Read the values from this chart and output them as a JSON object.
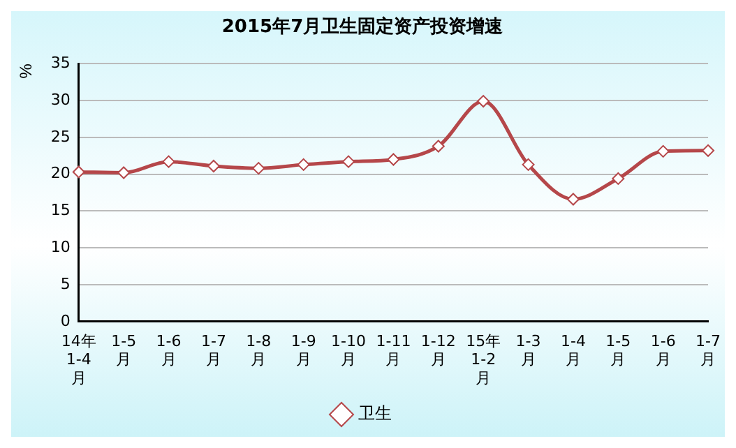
{
  "chart_data": {
    "type": "line",
    "title": "2015年7月卫生固定资产投资增速",
    "ylabel": "%",
    "categories": [
      "14年\n1-4\n月",
      "1-5\n月",
      "1-6\n月",
      "1-7\n月",
      "1-8\n月",
      "1-9\n月",
      "1-10\n月",
      "1-11\n月",
      "1-12\n月",
      "15年\n1-2\n月",
      "1-3\n月",
      "1-4\n月",
      "1-5\n月",
      "1-6\n月",
      "1-7\n月"
    ],
    "series": [
      {
        "name": "卫生",
        "color": "#b5474a",
        "values": [
          20.3,
          20.2,
          21.7,
          21.1,
          20.8,
          21.3,
          21.7,
          22.0,
          23.8,
          29.9,
          21.3,
          16.6,
          19.4,
          23.1,
          23.2
        ]
      }
    ],
    "ylim": [
      0,
      35
    ],
    "yticks": [
      0,
      5,
      10,
      15,
      20,
      25,
      30,
      35
    ],
    "grid": "y",
    "legend": "bottom",
    "marker": "diamond",
    "line_style": "solid"
  }
}
